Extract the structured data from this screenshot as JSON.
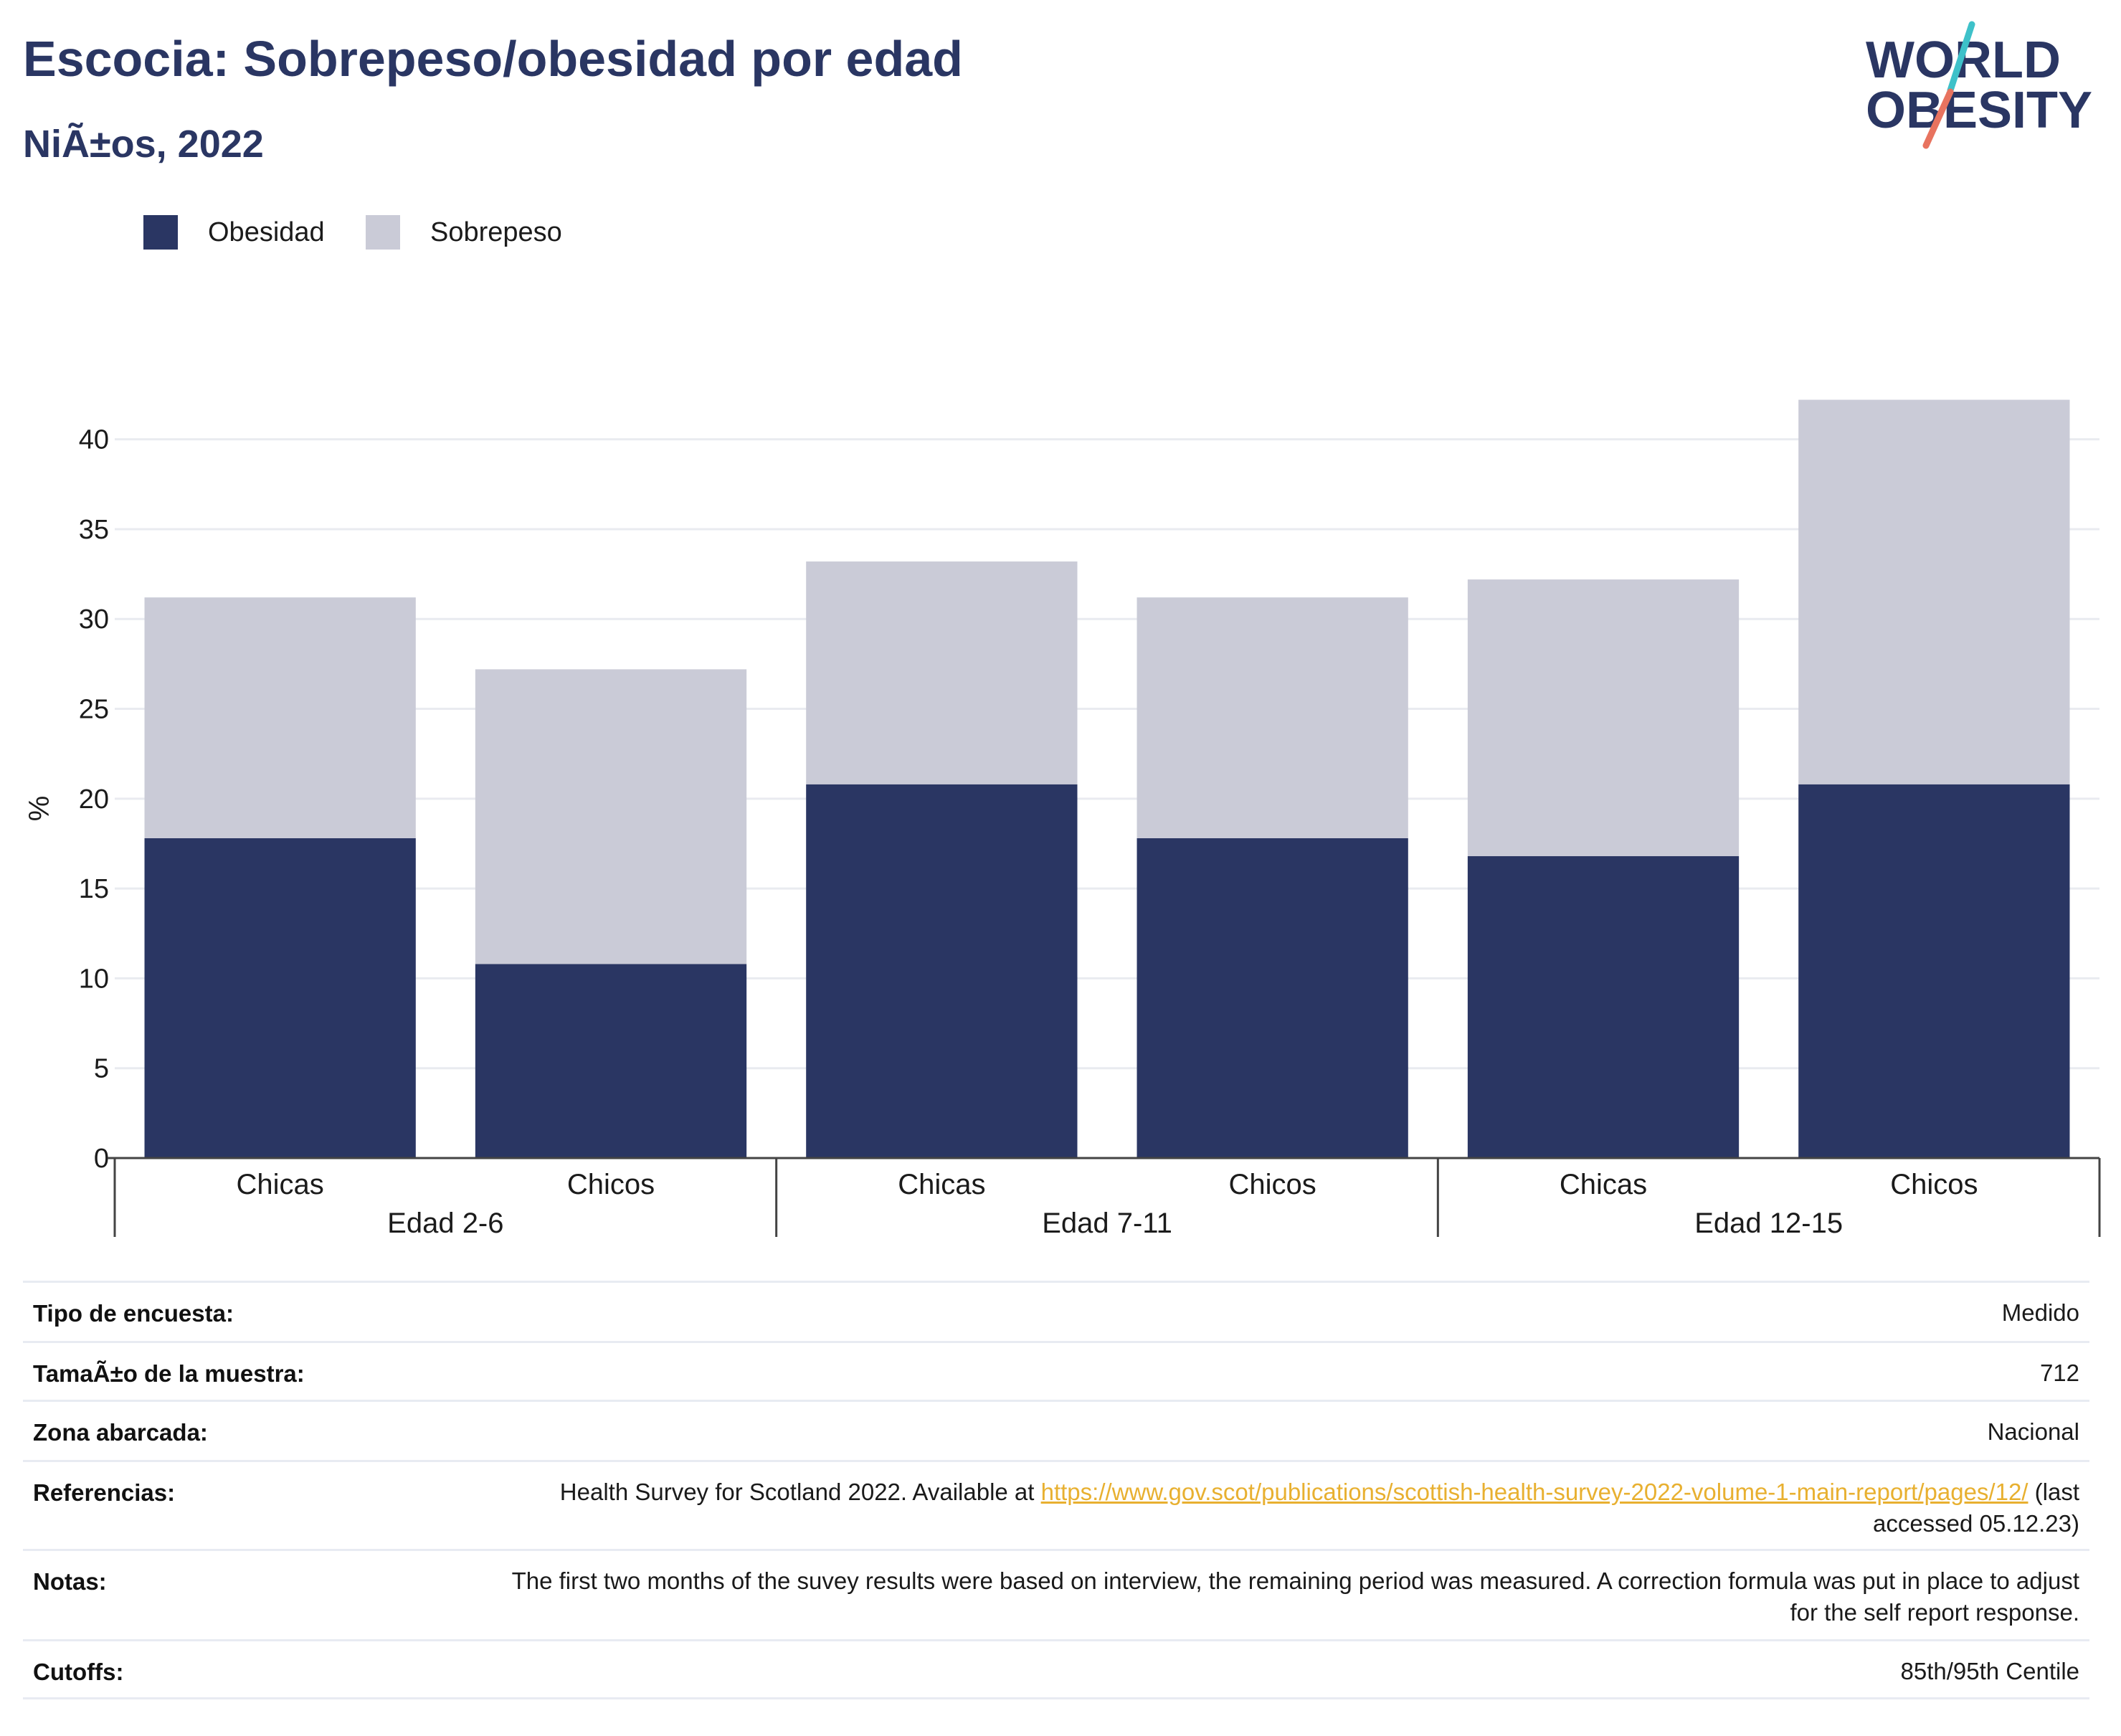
{
  "title": "Escocia: Sobrepeso/obesidad por edad",
  "subtitle": "NiÃ±os, 2022",
  "logo": {
    "line1": "WORLD",
    "line2": "OBESITY"
  },
  "colors": {
    "obesidad": "#2a3663",
    "sobrepeso": "#cacbd7",
    "accent_teal": "#3ec1c9",
    "accent_red": "#e8735f",
    "link": "#e8b030"
  },
  "legend": [
    {
      "label": "Obesidad",
      "color": "#2a3663"
    },
    {
      "label": "Sobrepeso",
      "color": "#cacbd7"
    }
  ],
  "chart_data": {
    "type": "bar",
    "stacked": true,
    "ylabel": "%",
    "ylim": [
      0,
      42.5
    ],
    "yticks": [
      0,
      5,
      10,
      15,
      20,
      25,
      30,
      35,
      40
    ],
    "grid": true,
    "legend_position": "top-left",
    "groups": [
      "Edad 2-6",
      "Edad 7-11",
      "Edad 12-15"
    ],
    "categories": [
      "Chicas",
      "Chicos",
      "Chicas",
      "Chicos",
      "Chicas",
      "Chicos"
    ],
    "category_group": [
      0,
      0,
      1,
      1,
      2,
      2
    ],
    "series": [
      {
        "name": "Obesidad",
        "values": [
          17.8,
          10.8,
          20.8,
          17.8,
          16.8,
          20.8
        ]
      },
      {
        "name": "Sobrepeso",
        "values": [
          13.4,
          16.4,
          12.4,
          13.4,
          15.4,
          21.4
        ]
      }
    ]
  },
  "details": [
    {
      "key": "Tipo de encuesta:",
      "value": "Medido"
    },
    {
      "key": "TamaÃ±o de la muestra:",
      "value": "712"
    },
    {
      "key": "Zona abarcada:",
      "value": "Nacional"
    },
    {
      "key": "Referencias:",
      "value_prefix": "Health Survey for Scotland 2022. Available at ",
      "link": "https://www.gov.scot/publications/scottish-health-survey-2022-volume-1-main-report/pages/12/",
      "value_suffix": " (last accessed 05.12.23)"
    },
    {
      "key": "Notas:",
      "value": "The first two months of the suvey results were based on interview, the remaining period was measured. A correction formula was put in place to adjust for the self report response."
    },
    {
      "key": "Cutoffs:",
      "value": "85th/95th Centile"
    }
  ]
}
